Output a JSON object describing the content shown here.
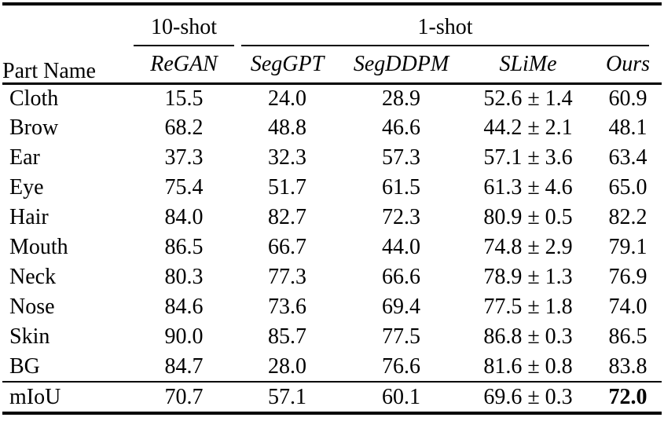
{
  "table": {
    "corner_header": "Part Name",
    "groups": {
      "ten_shot": "10-shot",
      "one_shot": "1-shot"
    },
    "methods": [
      "ReGAN",
      "SegGPT",
      "SegDDPM",
      "SLiMe",
      "Ours"
    ],
    "rows": [
      {
        "part": "Cloth",
        "cells": [
          "15.5",
          "24.0",
          "28.9",
          "52.6 ± 1.4",
          "60.9"
        ]
      },
      {
        "part": "Brow",
        "cells": [
          "68.2",
          "48.8",
          "46.6",
          "44.2 ± 2.1",
          "48.1"
        ]
      },
      {
        "part": "Ear",
        "cells": [
          "37.3",
          "32.3",
          "57.3",
          "57.1 ± 3.6",
          "63.4"
        ]
      },
      {
        "part": "Eye",
        "cells": [
          "75.4",
          "51.7",
          "61.5",
          "61.3 ± 4.6",
          "65.0"
        ]
      },
      {
        "part": "Hair",
        "cells": [
          "84.0",
          "82.7",
          "72.3",
          "80.9 ± 0.5",
          "82.2"
        ]
      },
      {
        "part": "Mouth",
        "cells": [
          "86.5",
          "66.7",
          "44.0",
          "74.8 ± 2.9",
          "79.1"
        ]
      },
      {
        "part": "Neck",
        "cells": [
          "80.3",
          "77.3",
          "66.6",
          "78.9 ± 1.3",
          "76.9"
        ]
      },
      {
        "part": "Nose",
        "cells": [
          "84.6",
          "73.6",
          "69.4",
          "77.5 ± 1.8",
          "74.0"
        ]
      },
      {
        "part": "Skin",
        "cells": [
          "90.0",
          "85.7",
          "77.5",
          "86.8 ± 0.3",
          "86.5"
        ]
      },
      {
        "part": "BG",
        "cells": [
          "84.7",
          "28.0",
          "76.6",
          "81.6 ± 0.8",
          "83.8"
        ]
      }
    ],
    "summary": {
      "part": "mIoU",
      "cells": [
        "70.7",
        "57.1",
        "60.1",
        "69.6 ± 0.3",
        "72.0"
      ]
    }
  }
}
